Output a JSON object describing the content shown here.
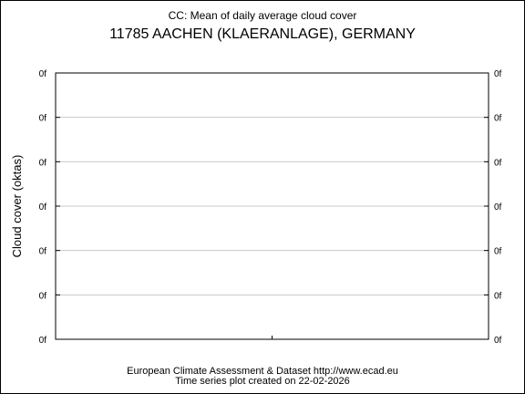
{
  "chart_data": {
    "type": "line",
    "title": "CC: Mean of daily average cloud cover",
    "subtitle": "11785 AACHEN (KLAERANLAGE), GERMANY",
    "ylabel": "Cloud cover (oktas)",
    "xlabel": "",
    "y_tick_labels": [
      "0f",
      "0f",
      "0f",
      "0f",
      "0f",
      "0f",
      "0f"
    ],
    "x_tick_labels": [],
    "series": [],
    "grid": true,
    "legend": "none"
  },
  "footer": {
    "line1": "European Climate Assessment & Dataset  http://www.ecad.eu",
    "line2": "Time series plot created on 22-02-2026"
  },
  "colors": {
    "background": "#ffffff",
    "axis": "#000000",
    "grid": "#c8c8c8",
    "text": "#000000"
  }
}
